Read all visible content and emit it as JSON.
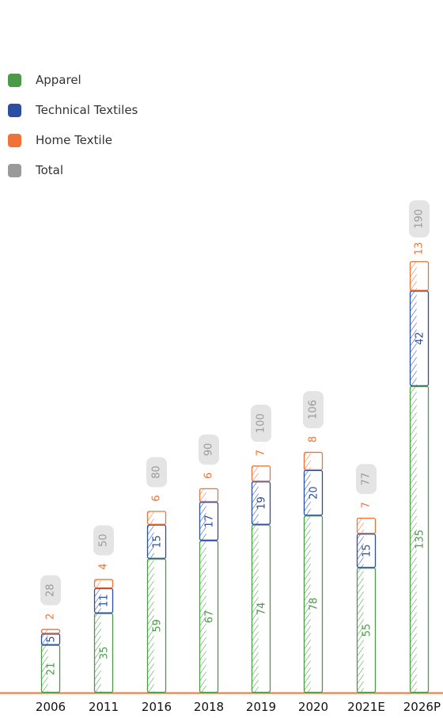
{
  "chart_data": {
    "type": "bar",
    "stacked": true,
    "categories": [
      "2006",
      "2011",
      "2016",
      "2018",
      "2019",
      "2020",
      "2021E",
      "2026P"
    ],
    "series": [
      {
        "name": "Apparel",
        "color": "#4a9a48",
        "values": [
          21,
          35,
          59,
          67,
          74,
          78,
          55,
          135
        ]
      },
      {
        "name": "Technical Textiles",
        "color": "#2b4ea0",
        "values": [
          5,
          11,
          15,
          17,
          19,
          20,
          15,
          42
        ]
      },
      {
        "name": "Home Textile",
        "color": "#f07238",
        "values": [
          2,
          4,
          6,
          6,
          7,
          8,
          7,
          13
        ]
      }
    ],
    "totals": {
      "name": "Total",
      "color": "#9a9a9a",
      "values": [
        28,
        50,
        80,
        90,
        100,
        106,
        77,
        190
      ]
    },
    "legend_position": "top-left",
    "ylim": [
      0,
      190
    ],
    "grid": false
  }
}
